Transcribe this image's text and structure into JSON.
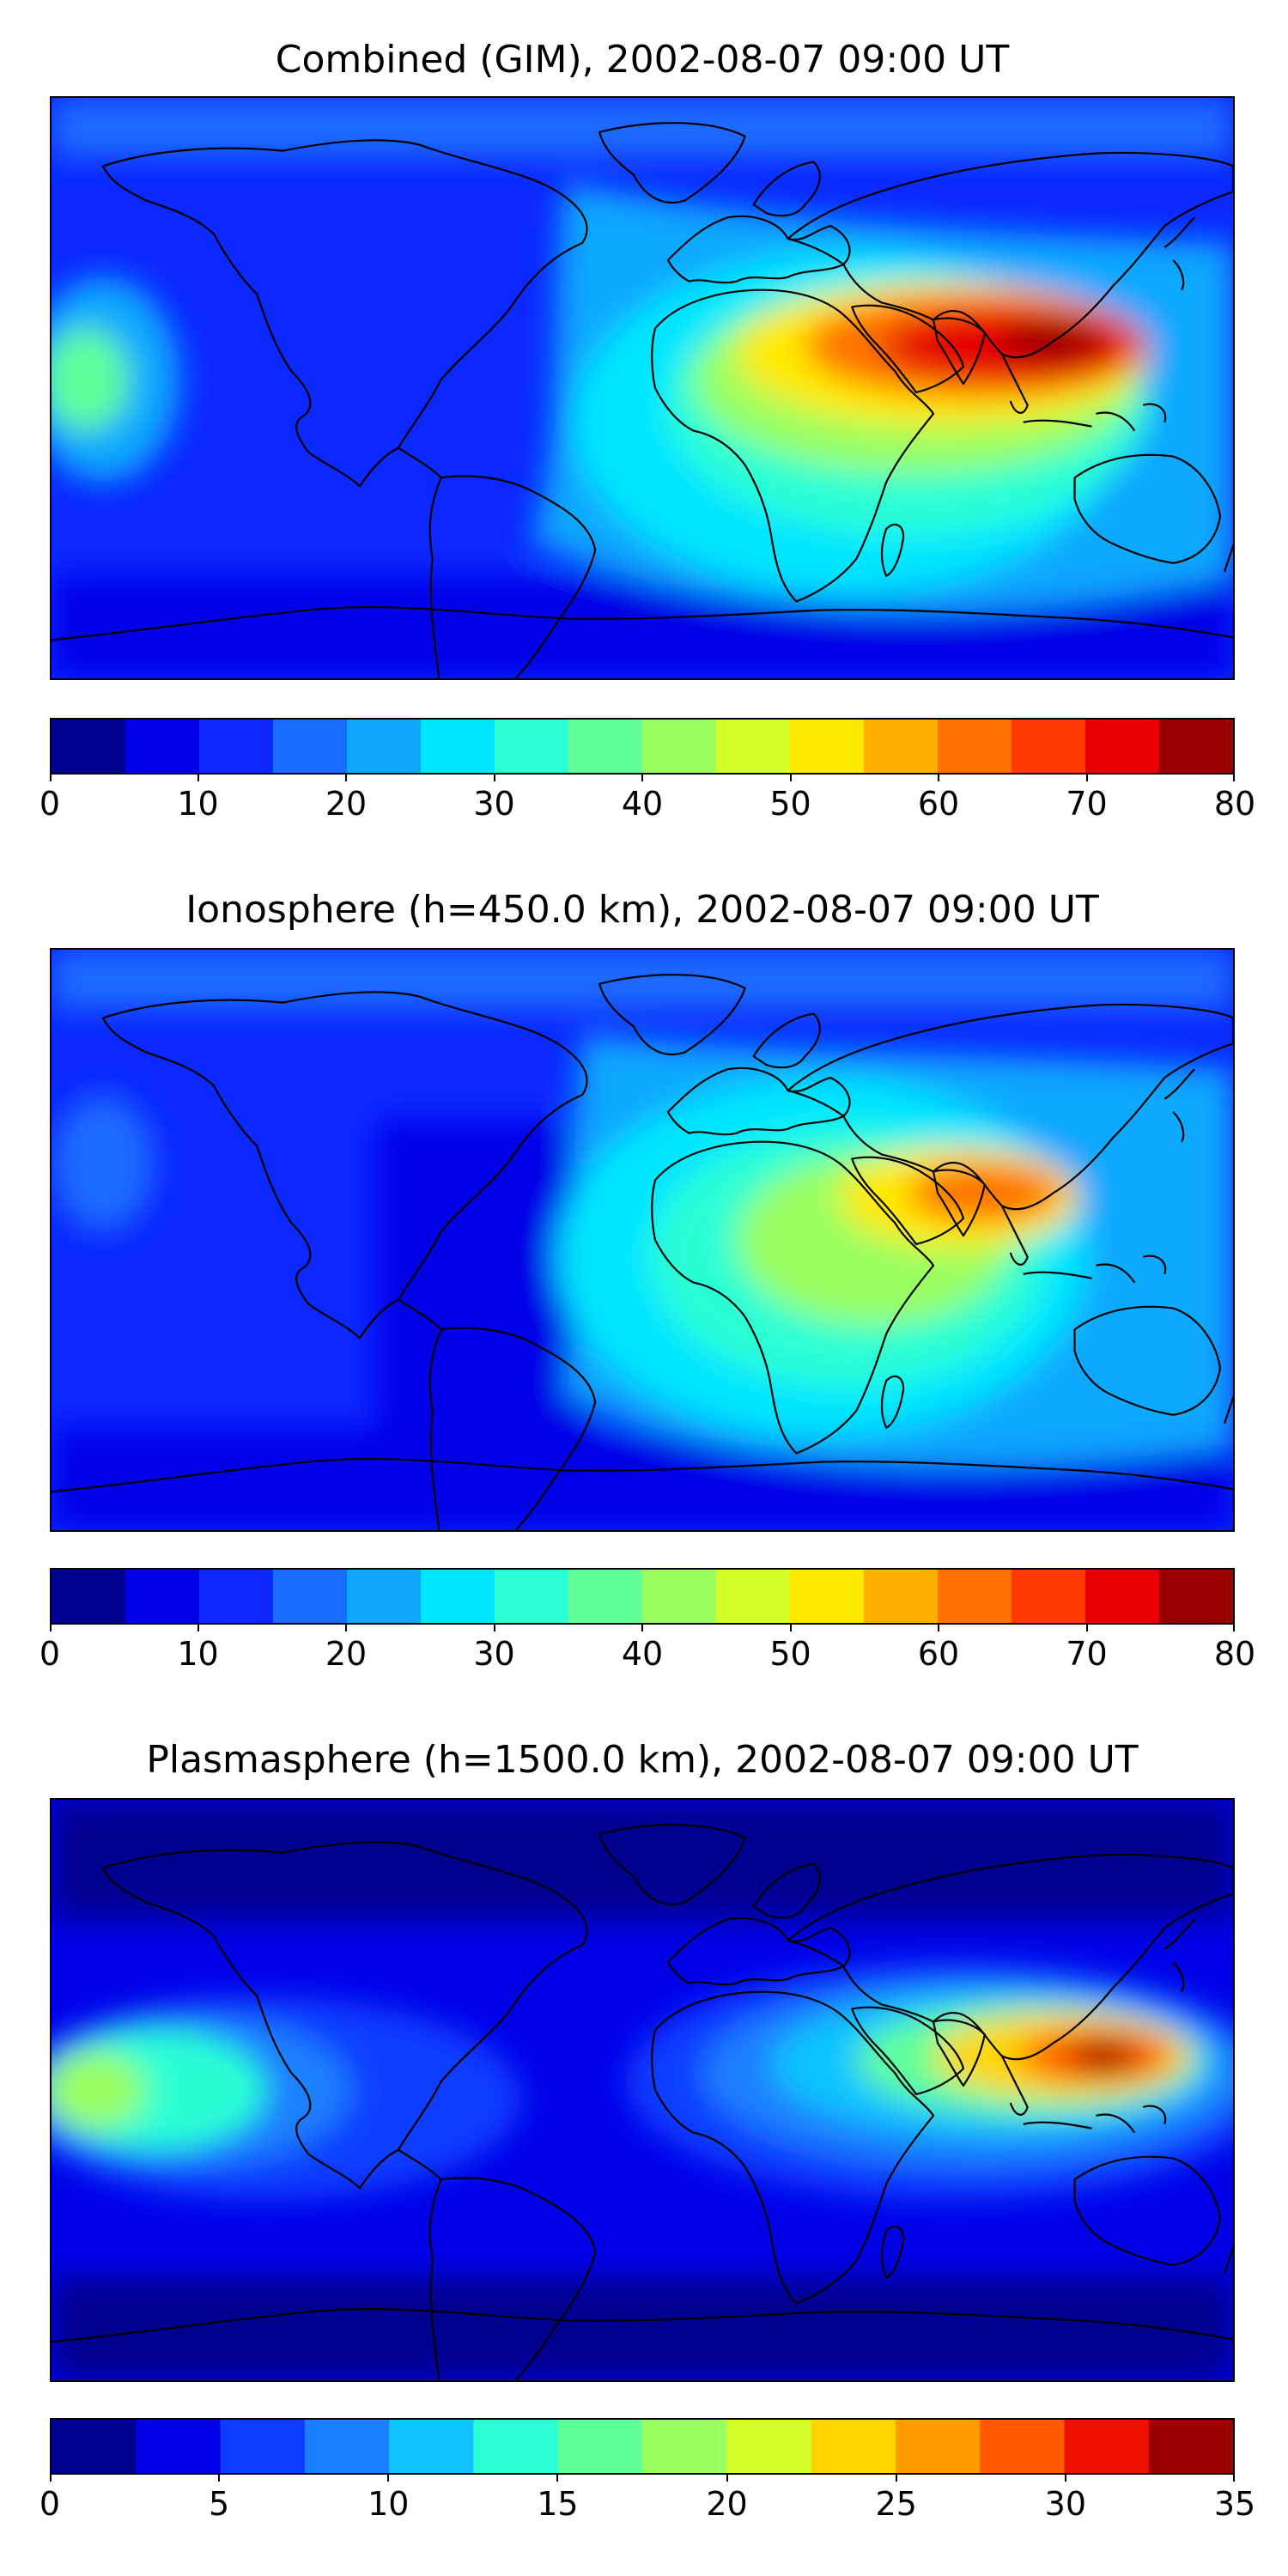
{
  "panels": [
    {
      "title": "Combined (GIM), 2002-08-07 09:00 UT",
      "colorbar": {
        "ticks": [
          "0",
          "10",
          "20",
          "30",
          "40",
          "50",
          "60",
          "70",
          "80"
        ],
        "tick_values": [
          0,
          10,
          20,
          30,
          40,
          50,
          60,
          70,
          80
        ],
        "range": [
          0,
          80
        ],
        "levels": 16,
        "colors": [
          "#00008f",
          "#0000e6",
          "#0b28ff",
          "#1a6cff",
          "#10a8ff",
          "#00e6ff",
          "#2bffd4",
          "#60ff9a",
          "#9aff60",
          "#d4ff2b",
          "#ffea00",
          "#ffb000",
          "#ff7200",
          "#ff3a00",
          "#e60000",
          "#9a0000"
        ]
      },
      "map_regions": [
        {
          "label": "ionization-crest-south-asia",
          "value": 75
        },
        {
          "label": "east-africa-arabia",
          "value": 55
        },
        {
          "label": "north-atlantic",
          "value": 10
        }
      ]
    },
    {
      "title": "Ionosphere  (h=450.0 km), 2002-08-07 09:00 UT",
      "colorbar": {
        "ticks": [
          "0",
          "10",
          "20",
          "30",
          "40",
          "50",
          "60",
          "70",
          "80"
        ],
        "tick_values": [
          0,
          10,
          20,
          30,
          40,
          50,
          60,
          70,
          80
        ],
        "range": [
          0,
          80
        ],
        "levels": 16,
        "colors": [
          "#00008f",
          "#0000e6",
          "#0b28ff",
          "#1a6cff",
          "#10a8ff",
          "#00e6ff",
          "#2bffd4",
          "#60ff9a",
          "#9aff60",
          "#d4ff2b",
          "#ffea00",
          "#ffb000",
          "#ff7200",
          "#ff3a00",
          "#e60000",
          "#9a0000"
        ]
      },
      "map_regions": [
        {
          "label": "ionization-crest-south-asia",
          "value": 62
        },
        {
          "label": "africa",
          "value": 40
        },
        {
          "label": "south-america",
          "value": 5
        }
      ]
    },
    {
      "title": "Plasmasphere (h=1500.0 km), 2002-08-07 09:00 UT",
      "colorbar": {
        "ticks": [
          "0",
          "5",
          "10",
          "15",
          "20",
          "25",
          "30",
          "35"
        ],
        "tick_values": [
          0,
          5,
          10,
          15,
          20,
          25,
          30,
          35
        ],
        "range": [
          0,
          35
        ],
        "levels": 14,
        "colors": [
          "#00008f",
          "#0000e6",
          "#0b3cff",
          "#1a80ff",
          "#10c4ff",
          "#2bffd4",
          "#60ff9a",
          "#9aff60",
          "#d4ff2b",
          "#ffd600",
          "#ff9a00",
          "#ff5a00",
          "#f01000",
          "#9a0000"
        ]
      },
      "map_regions": [
        {
          "label": "maritime-continent",
          "value": 30
        },
        {
          "label": "east-pacific",
          "value": 19
        },
        {
          "label": "polar",
          "value": 1
        }
      ]
    }
  ]
}
